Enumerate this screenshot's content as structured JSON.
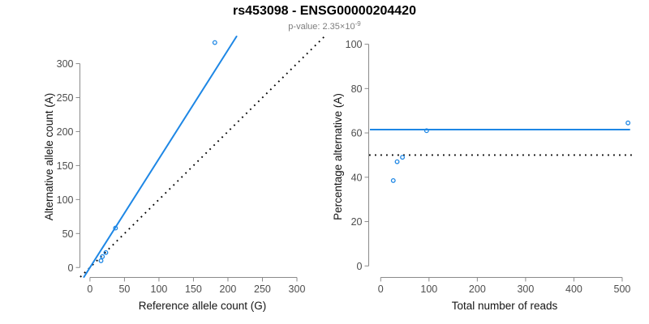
{
  "header": {
    "title": "rs453098 - ENSG00000204420",
    "p_value": {
      "prefix": "p-value: 2.35×10",
      "exponent": "-9"
    }
  },
  "colors": {
    "blue": "#1E87E5",
    "dotted": "#000000",
    "axis": "#8A8A8A",
    "tick_text": "#4D4D4D",
    "axis_title_text": "#141414",
    "title_text": "#000000",
    "subtitle_text": "#7D7D7D",
    "background": "#FFFFFF"
  },
  "chart_data": [
    {
      "name": "allele-counts-scatter",
      "type": "scatter",
      "xlabel": "Reference allele count (G)",
      "ylabel": "Alternative allele count (A)",
      "xlim": [
        -14,
        340
      ],
      "ylim": [
        -14,
        340
      ],
      "xticks": [
        0,
        50,
        100,
        150,
        200,
        250,
        300
      ],
      "yticks": [
        0,
        50,
        100,
        150,
        200,
        250,
        300
      ],
      "grid": false,
      "legend": null,
      "points": [
        [
          16,
          10
        ],
        [
          18,
          16
        ],
        [
          23,
          22
        ],
        [
          37,
          58
        ],
        [
          181,
          331
        ]
      ],
      "fit_line": {
        "slope": 1.6,
        "intercept": 0,
        "style": "solid-blue"
      },
      "identity_line": {
        "style": "dotted-black",
        "slope": 1,
        "intercept": 0
      }
    },
    {
      "name": "percentage-vs-reads-scatter",
      "type": "scatter",
      "xlabel": "Total number of reads",
      "ylabel": "Percentage alternative (A)",
      "xlim": [
        -24,
        537
      ],
      "ylim": [
        -5,
        103.5
      ],
      "xticks": [
        0,
        100,
        200,
        300,
        400,
        500
      ],
      "yticks": [
        0,
        20,
        40,
        60,
        80,
        100
      ],
      "grid": false,
      "legend": null,
      "points": [
        [
          26,
          38.5
        ],
        [
          34,
          47
        ],
        [
          45,
          49
        ],
        [
          95,
          61
        ],
        [
          512,
          64.5
        ]
      ],
      "blue_hline": {
        "y": 61.5,
        "x_end": 513,
        "style": "solid-blue"
      },
      "dotted_hline": {
        "y": 50,
        "style": "dotted-black"
      }
    }
  ]
}
